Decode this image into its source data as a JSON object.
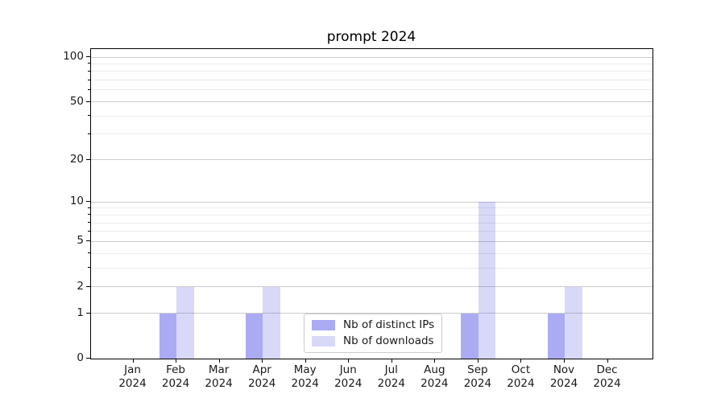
{
  "title": "prompt 2024",
  "chart_data": {
    "type": "bar",
    "title": "prompt 2024",
    "categories": [
      "Jan",
      "Feb",
      "Mar",
      "Apr",
      "May",
      "Jun",
      "Jul",
      "Aug",
      "Sep",
      "Oct",
      "Nov",
      "Dec"
    ],
    "category_year": "2024",
    "series": [
      {
        "name": "Nb of distinct IPs",
        "color": "rgba(10,10,220,0.34)",
        "values": [
          0,
          1,
          0,
          1,
          0,
          0,
          0,
          0,
          1,
          0,
          1,
          0
        ]
      },
      {
        "name": "Nb of downloads",
        "color": "rgba(10,10,220,0.16)",
        "values": [
          0,
          2,
          0,
          2,
          0,
          0,
          0,
          0,
          10,
          0,
          2,
          0
        ]
      }
    ],
    "yscale": "log1p",
    "ylim": [
      0,
      100
    ],
    "y_major_ticks": [
      0,
      1,
      2,
      5,
      10,
      20,
      50,
      100
    ],
    "y_minor_gridlines": [
      3,
      4,
      6,
      7,
      8,
      9,
      30,
      40,
      60,
      70,
      80,
      90
    ],
    "grid": true,
    "legend_position": "inside lower-center-left"
  },
  "colors": {
    "background": "#ffffff",
    "spine": "#000000",
    "text": "#1a1a1a",
    "major_grid": "#cccccc",
    "minor_grid": "#ebebeb",
    "legend_border": "#cccccc",
    "bar_distinct_ips": "rgba(10,10,220,0.34)",
    "bar_downloads": "rgba(10,10,220,0.16)"
  }
}
